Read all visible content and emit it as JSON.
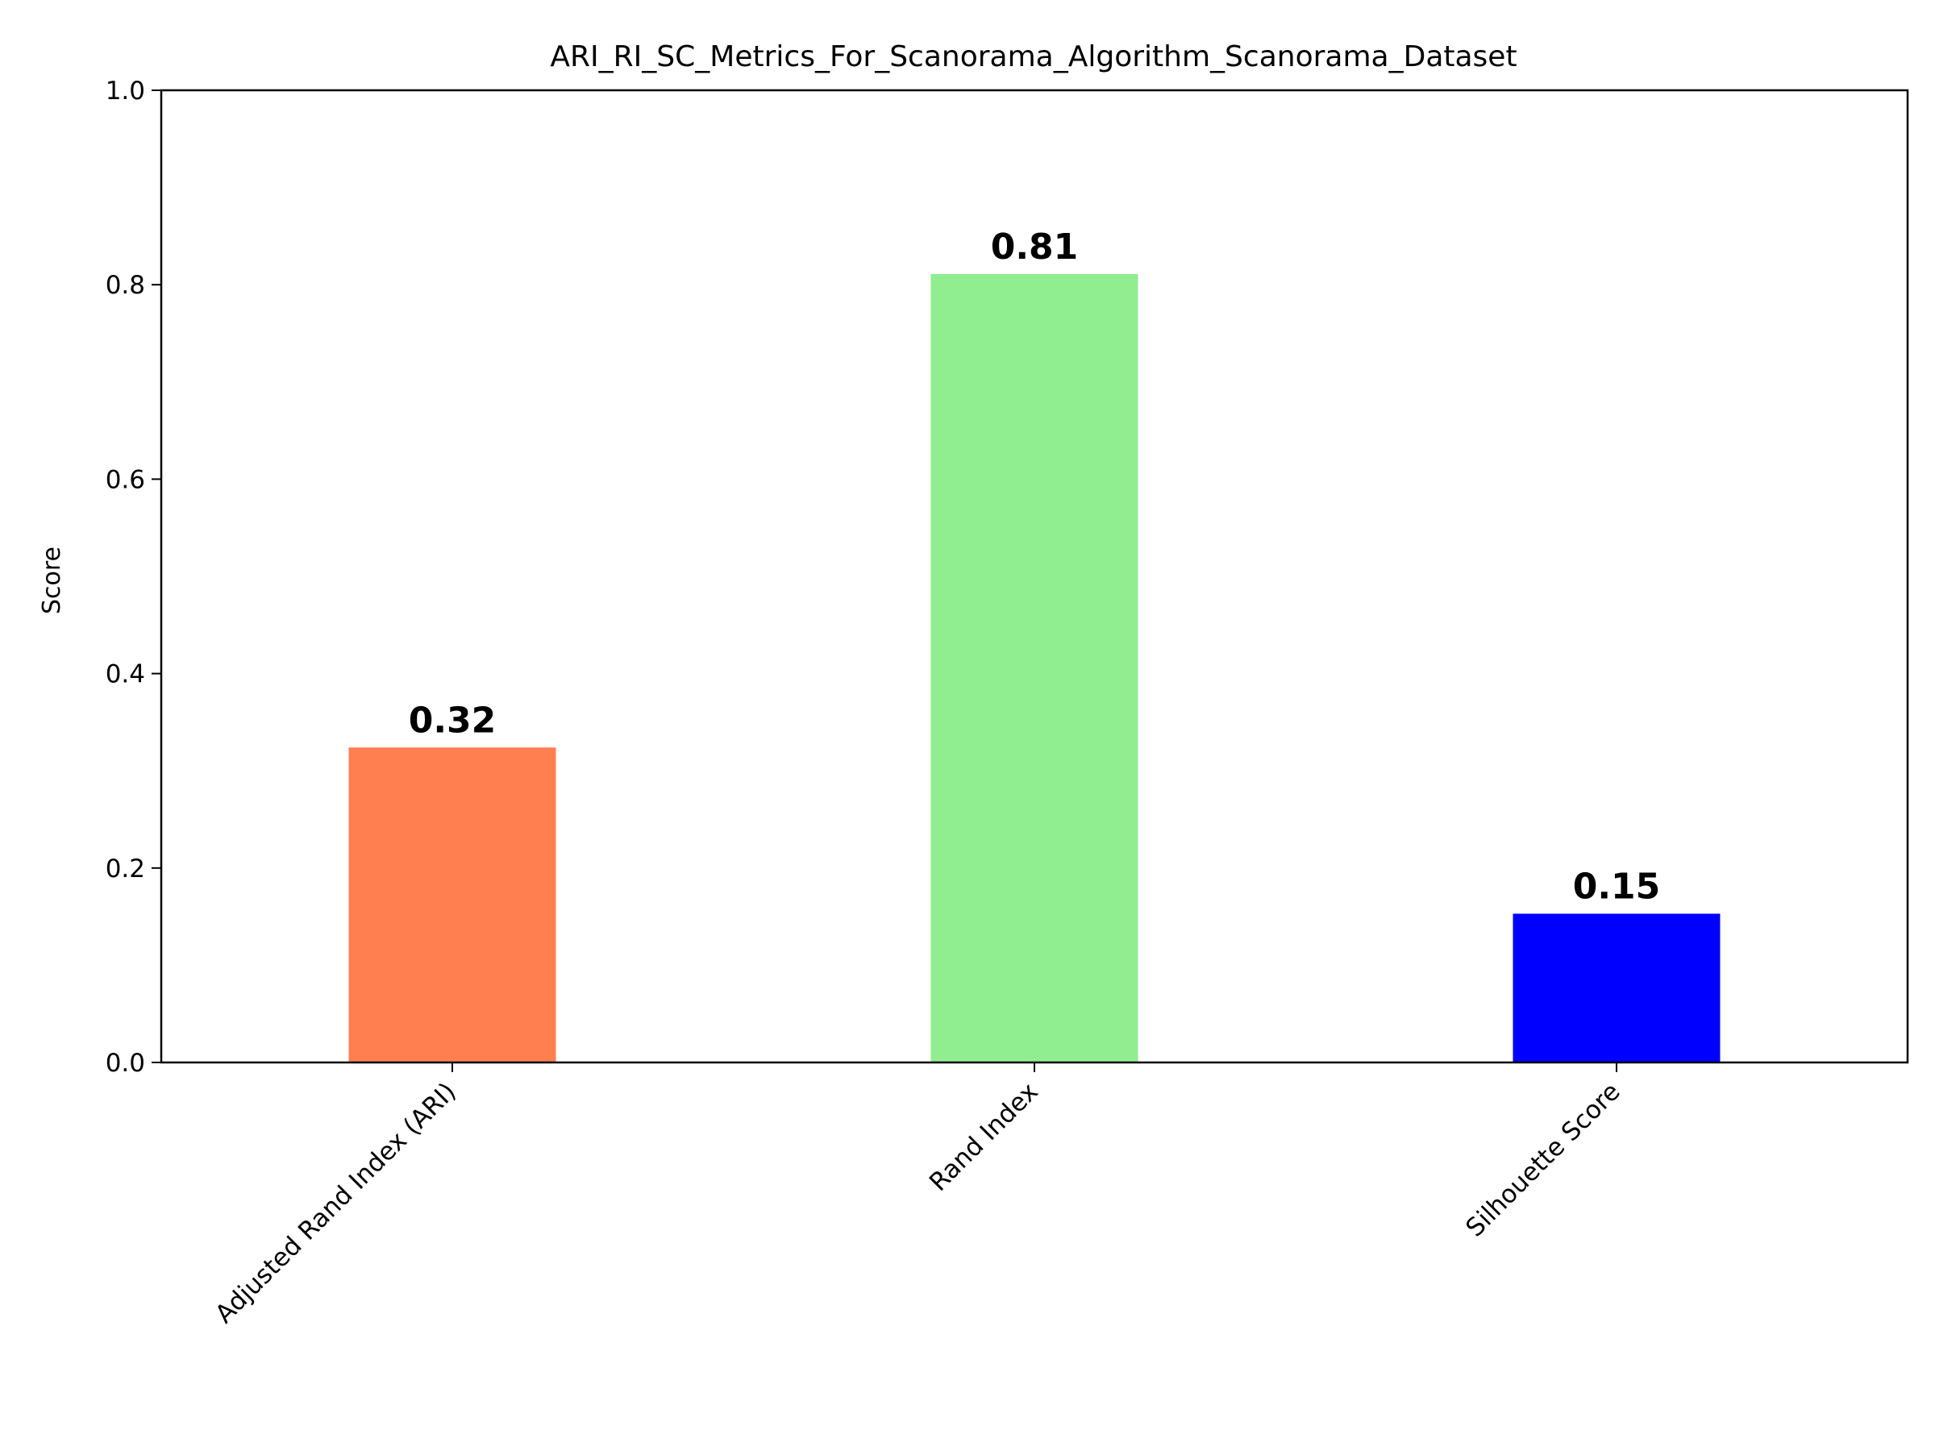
{
  "chart_data": {
    "type": "bar",
    "title": "ARI_RI_SC_Metrics_For_Scanorama_Algorithm_Scanorama_Dataset",
    "xlabel": "",
    "ylabel": "Score",
    "categories": [
      "Adjusted Rand Index (ARI)",
      "Rand Index",
      "Silhouette Score"
    ],
    "values": [
      0.324,
      0.811,
      0.153
    ],
    "value_labels": [
      "0.32",
      "0.81",
      "0.15"
    ],
    "colors": [
      "#FF7F50",
      "#90EE90",
      "#0000FF"
    ],
    "ylim": [
      0,
      1
    ],
    "yticks": [
      0.0,
      0.2,
      0.4,
      0.6,
      0.8,
      1.0
    ],
    "ytick_labels": [
      "0.0",
      "0.2",
      "0.4",
      "0.6",
      "0.8",
      "1.0"
    ],
    "grid": false,
    "legend": "none"
  }
}
